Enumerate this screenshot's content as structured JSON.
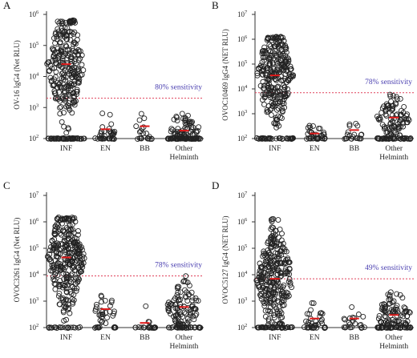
{
  "figure": {
    "tick_prefix": "10",
    "ymin_exp": 2,
    "panels": [
      {
        "label": "A",
        "ylabel": "OV-16 IgG4 (Net RLU)",
        "ymax_exp": 6,
        "threshold": 2000,
        "sensitivity_text": "80% sensitivity",
        "categories": [
          "INF",
          "EN",
          "BB",
          "Other\nHelminth"
        ],
        "medians": [
          25000,
          200,
          250,
          180
        ],
        "groups": [
          {
            "name": "INF",
            "n": 320,
            "median": 25000,
            "lo": 100,
            "hi": 650000,
            "floor_frac": 0.18,
            "spread": 24
          },
          {
            "name": "EN",
            "n": 40,
            "median": 200,
            "lo": 100,
            "hi": 1900,
            "floor_frac": 0.45,
            "spread": 14
          },
          {
            "name": "BB",
            "n": 22,
            "median": 250,
            "lo": 100,
            "hi": 1000,
            "floor_frac": 0.5,
            "spread": 14
          },
          {
            "name": "Other Helminth",
            "n": 130,
            "median": 180,
            "lo": 100,
            "hi": 1800,
            "floor_frac": 0.55,
            "spread": 22
          }
        ]
      },
      {
        "label": "B",
        "ylabel": "OVOC10469 IgG4 (NET RLU)",
        "ymax_exp": 7,
        "threshold": 7000,
        "sensitivity_text": "78% sensitivity",
        "categories": [
          "INF",
          "EN",
          "BB",
          "Other\nHelminth"
        ],
        "medians": [
          35000,
          160,
          220,
          700
        ],
        "groups": [
          {
            "name": "INF",
            "n": 320,
            "median": 35000,
            "lo": 100,
            "hi": 1300000,
            "floor_frac": 0.12,
            "spread": 24
          },
          {
            "name": "EN",
            "n": 40,
            "median": 160,
            "lo": 100,
            "hi": 1000,
            "floor_frac": 0.5,
            "spread": 14
          },
          {
            "name": "BB",
            "n": 22,
            "median": 220,
            "lo": 100,
            "hi": 3000,
            "floor_frac": 0.5,
            "spread": 14
          },
          {
            "name": "Other Helminth",
            "n": 130,
            "median": 700,
            "lo": 100,
            "hi": 6000,
            "floor_frac": 0.3,
            "spread": 22
          }
        ]
      },
      {
        "label": "C",
        "ylabel": "OVOC3261 IgG4 (Net RLU)",
        "ymax_exp": 7,
        "threshold": 9000,
        "sensitivity_text": "78% sensitivity",
        "categories": [
          "INF",
          "EN",
          "BB",
          "Other\nHelminth"
        ],
        "medians": [
          45000,
          500,
          150,
          600
        ],
        "groups": [
          {
            "name": "INF",
            "n": 320,
            "median": 45000,
            "lo": 100,
            "hi": 1500000,
            "floor_frac": 0.06,
            "spread": 24
          },
          {
            "name": "EN",
            "n": 40,
            "median": 500,
            "lo": 100,
            "hi": 2000,
            "floor_frac": 0.3,
            "spread": 14
          },
          {
            "name": "BB",
            "n": 22,
            "median": 150,
            "lo": 100,
            "hi": 2000,
            "floor_frac": 0.85,
            "spread": 14
          },
          {
            "name": "Other Helminth",
            "n": 130,
            "median": 600,
            "lo": 100,
            "hi": 9000,
            "floor_frac": 0.25,
            "spread": 22
          }
        ]
      },
      {
        "label": "D",
        "ylabel": "OVOC5127 IgG4 (NET RLU)",
        "ymax_exp": 7,
        "threshold": 7000,
        "sensitivity_text": "49% sensitivity",
        "categories": [
          "INF",
          "EN",
          "BB",
          "Other\nHelminth"
        ],
        "medians": [
          7000,
          220,
          220,
          300
        ],
        "groups": [
          {
            "name": "INF",
            "n": 320,
            "median": 7000,
            "lo": 100,
            "hi": 1300000,
            "floor_frac": 0.12,
            "spread": 24
          },
          {
            "name": "EN",
            "n": 40,
            "median": 220,
            "lo": 100,
            "hi": 3000,
            "floor_frac": 0.4,
            "spread": 14
          },
          {
            "name": "BB",
            "n": 22,
            "median": 220,
            "lo": 100,
            "hi": 800,
            "floor_frac": 0.35,
            "spread": 14
          },
          {
            "name": "Other Helminth",
            "n": 130,
            "median": 300,
            "lo": 100,
            "hi": 8000,
            "floor_frac": 0.35,
            "spread": 22
          }
        ]
      }
    ]
  },
  "chart_data": [
    {
      "type": "scatter",
      "panel": "A",
      "ylabel": "OV-16 IgG4 (Net RLU)",
      "yscale": "log",
      "ylim": [
        100,
        1000000
      ],
      "categories": [
        "INF",
        "EN",
        "BB",
        "Other Helminth"
      ],
      "medians": [
        25000,
        200,
        250,
        180
      ],
      "threshold": 2000,
      "annotation": "80% sensitivity"
    },
    {
      "type": "scatter",
      "panel": "B",
      "ylabel": "OVOC10469 IgG4 (NET RLU)",
      "yscale": "log",
      "ylim": [
        100,
        10000000
      ],
      "categories": [
        "INF",
        "EN",
        "BB",
        "Other Helminth"
      ],
      "medians": [
        35000,
        160,
        220,
        700
      ],
      "threshold": 7000,
      "annotation": "78% sensitivity"
    },
    {
      "type": "scatter",
      "panel": "C",
      "ylabel": "OVOC3261 IgG4 (Net RLU)",
      "yscale": "log",
      "ylim": [
        100,
        10000000
      ],
      "categories": [
        "INF",
        "EN",
        "BB",
        "Other Helminth"
      ],
      "medians": [
        45000,
        500,
        150,
        600
      ],
      "threshold": 9000,
      "annotation": "78% sensitivity"
    },
    {
      "type": "scatter",
      "panel": "D",
      "ylabel": "OVOC5127 IgG4 (NET RLU)",
      "yscale": "log",
      "ylim": [
        100,
        10000000
      ],
      "categories": [
        "INF",
        "EN",
        "BB",
        "Other Helminth"
      ],
      "medians": [
        7000,
        220,
        220,
        300
      ],
      "threshold": 7000,
      "annotation": "49% sensitivity"
    }
  ]
}
